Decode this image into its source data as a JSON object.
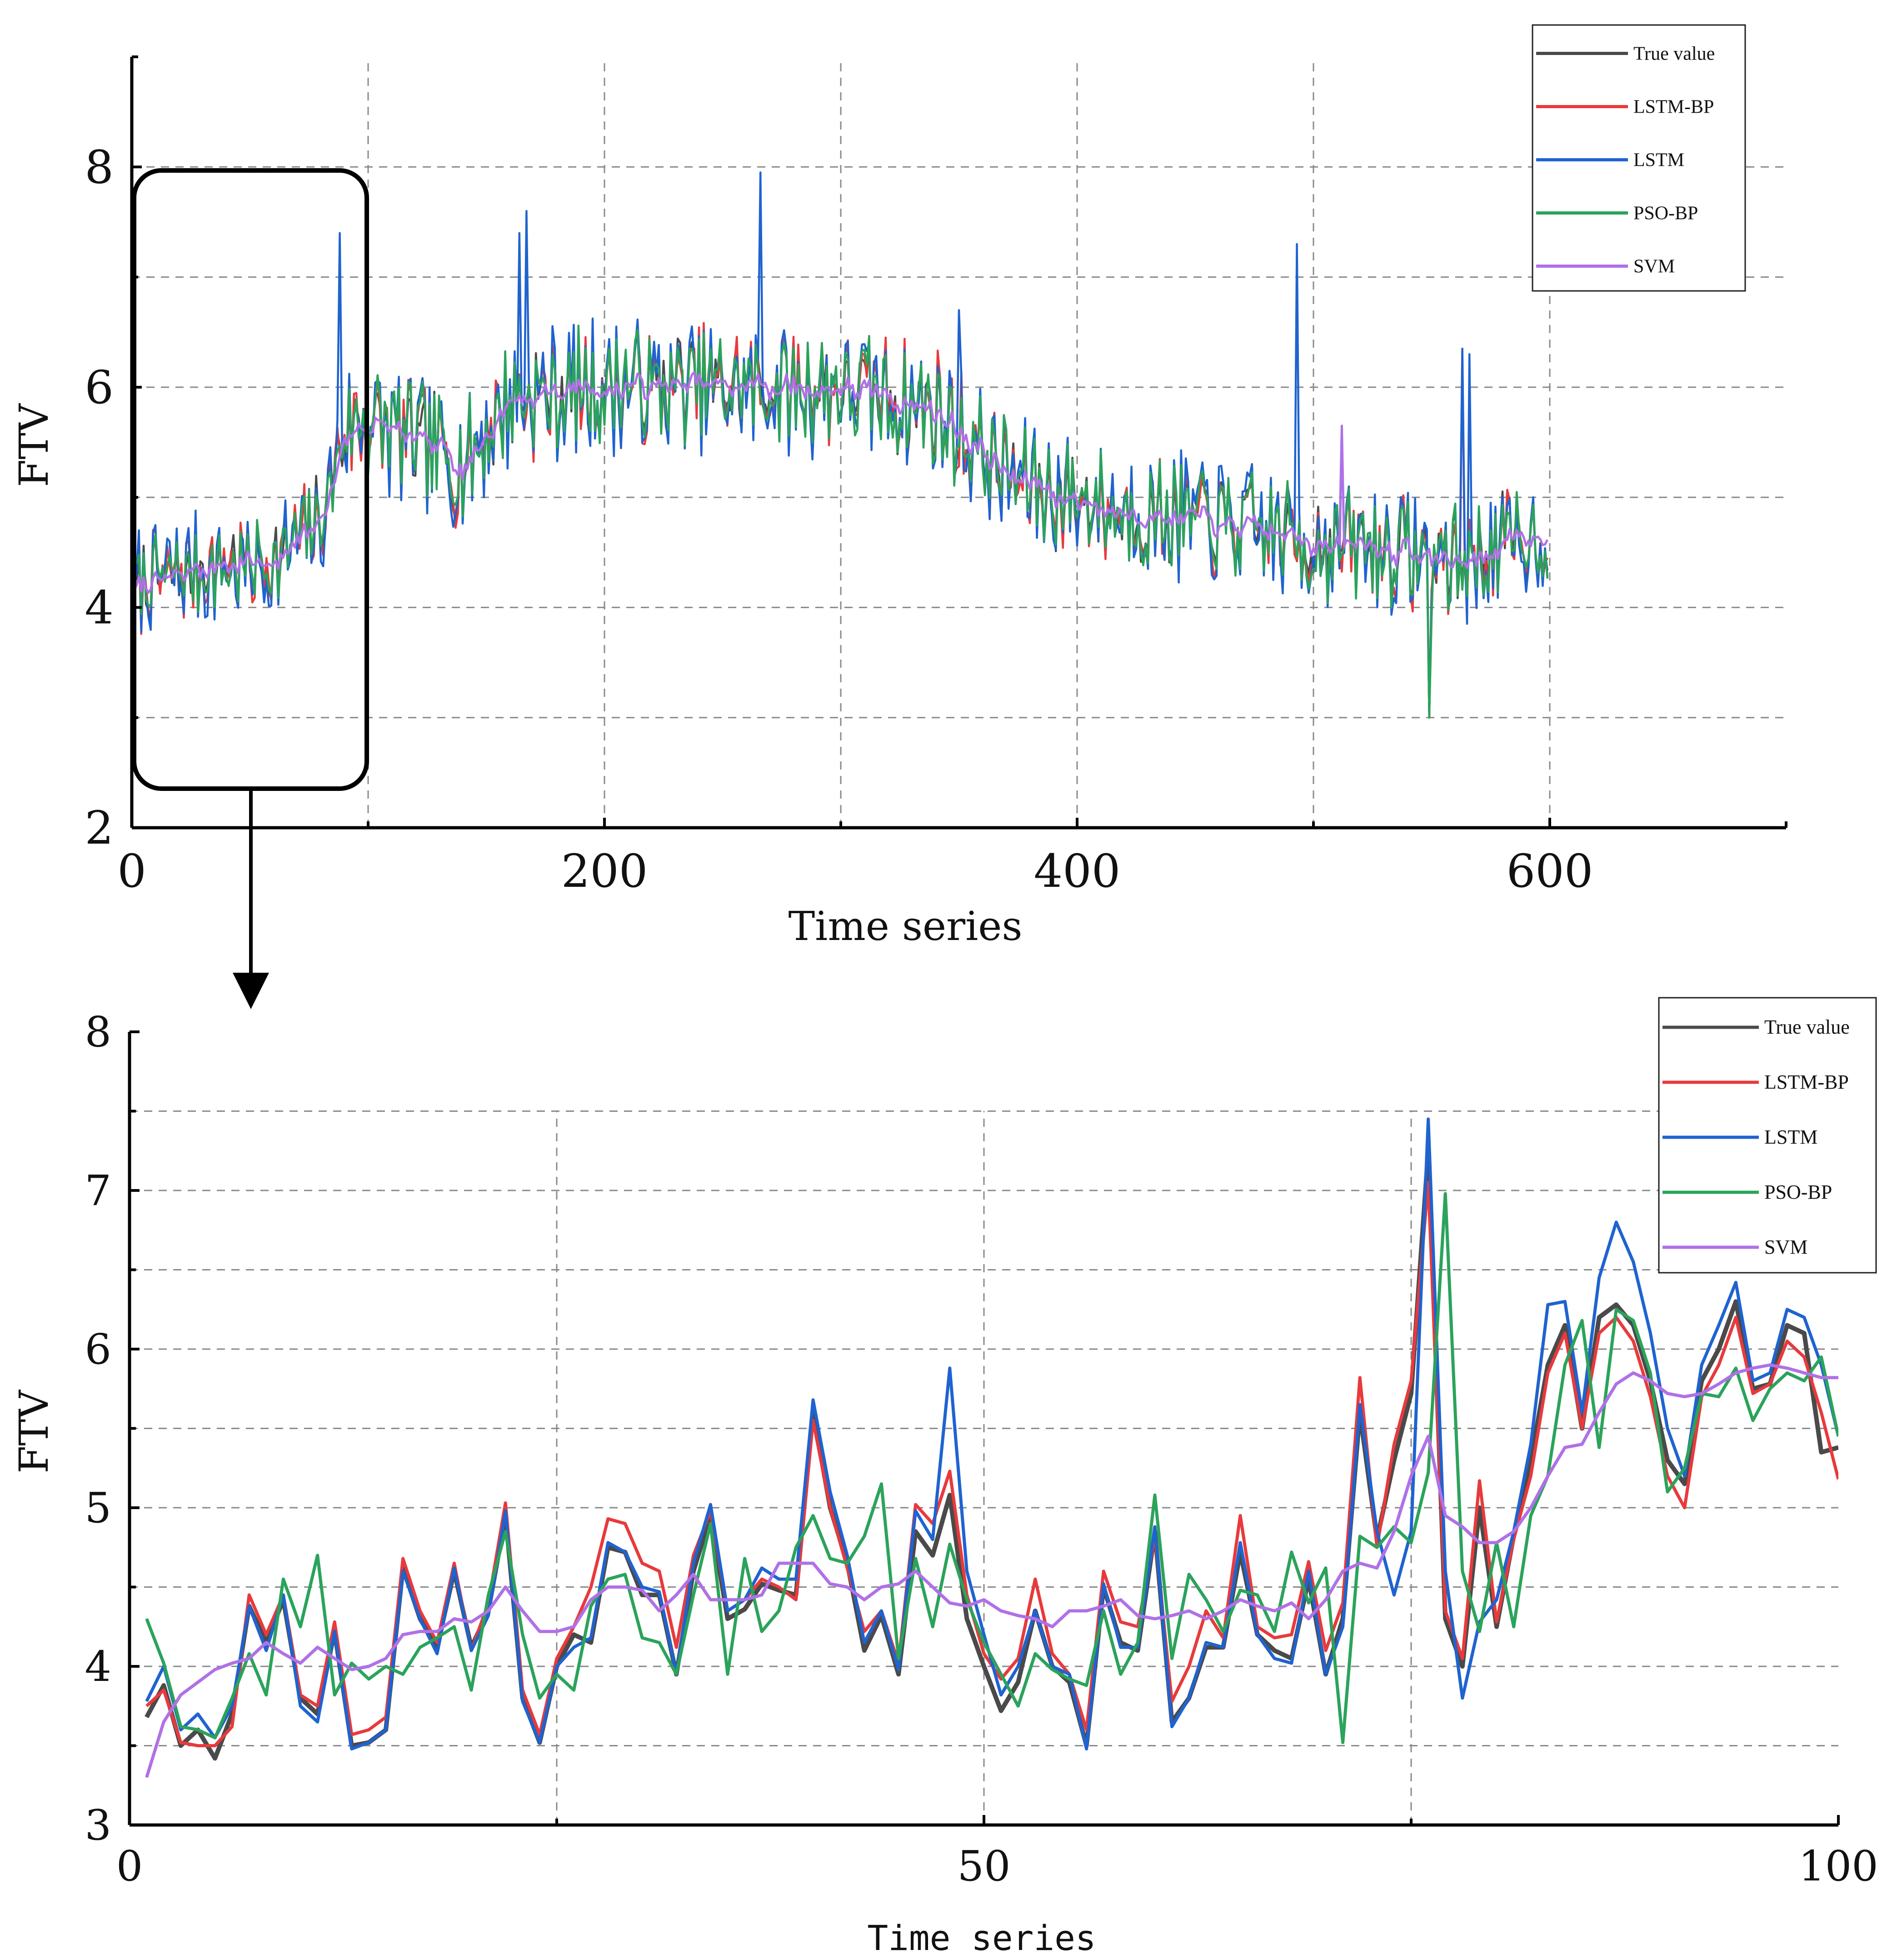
{
  "chart_data": [
    {
      "type": "line",
      "id": "overview",
      "xlabel": "Time series",
      "ylabel": "FTV",
      "xlim": [
        0,
        700
      ],
      "ylim": [
        2,
        9
      ],
      "xticks": [
        "0",
        "200",
        "400",
        "600"
      ],
      "xtick_values": [
        0,
        200,
        400,
        600
      ],
      "yticks": [
        "2",
        "4",
        "6",
        "8"
      ],
      "ytick_values": [
        2,
        4,
        6,
        8
      ],
      "grid_x": [
        100,
        200,
        300,
        400,
        500,
        600
      ],
      "grid_y": [
        3,
        4,
        5,
        6,
        7,
        8
      ],
      "legend": [
        "True value",
        "LSTM-BP",
        "LSTM",
        "PSO-BP",
        "SVM"
      ],
      "legend_position": "top-right",
      "n_points": 600,
      "trend_knots_x": [
        0,
        40,
        60,
        80,
        90,
        100,
        140,
        160,
        200,
        250,
        300,
        340,
        370,
        400,
        450,
        500,
        540,
        560,
        600
      ],
      "trend_knots_y": [
        4.2,
        4.4,
        4.4,
        4.8,
        5.6,
        5.7,
        5.3,
        5.9,
        6.0,
        6.0,
        6.0,
        5.8,
        5.2,
        4.95,
        4.8,
        4.6,
        4.5,
        4.4,
        4.7
      ],
      "series": [
        {
          "name": "True value",
          "color": "#4a4a4a",
          "seed": 11,
          "amp": 1.0
        },
        {
          "name": "LSTM-BP",
          "color": "#e8393d",
          "seed": 22,
          "amp": 1.1
        },
        {
          "name": "LSTM",
          "color": "#1f63d0",
          "seed": 33,
          "amp": 1.3
        },
        {
          "name": "PSO-BP",
          "color": "#2ba35a",
          "seed": 44,
          "amp": 1.05
        },
        {
          "name": "SVM",
          "color": "#b070e6",
          "seed": 55,
          "amp": 0.15
        }
      ],
      "spikes": [
        [
          88,
          7.4
        ],
        [
          164,
          7.4
        ],
        [
          167,
          7.6
        ],
        [
          266,
          7.95
        ],
        [
          350,
          6.7
        ],
        [
          493,
          7.3
        ],
        [
          512,
          5.65
        ],
        [
          563,
          6.35
        ],
        [
          566,
          6.3
        ],
        [
          549,
          3.0
        ]
      ]
    },
    {
      "type": "line",
      "id": "zoom",
      "xlabel": "Time series",
      "ylabel": "FTV",
      "xlim": [
        0,
        100
      ],
      "ylim": [
        3,
        8
      ],
      "xticks": [
        "0",
        "50",
        "100"
      ],
      "xtick_values": [
        0,
        50,
        100
      ],
      "yticks": [
        "3",
        "4",
        "5",
        "6",
        "7",
        "8"
      ],
      "ytick_values": [
        3,
        4,
        5,
        6,
        7,
        8
      ],
      "grid_x": [
        25,
        50,
        75
      ],
      "grid_y": [
        3.5,
        4,
        4.5,
        5,
        5.5,
        6,
        6.5,
        7,
        7.5
      ],
      "legend": [
        "True value",
        "LSTM-BP",
        "LSTM",
        "PSO-BP",
        "SVM"
      ],
      "legend_position": "top-right",
      "x": [
        1,
        2,
        3,
        4,
        5,
        6,
        7,
        8,
        9,
        10,
        11,
        12,
        13,
        14,
        15,
        16,
        17,
        18,
        19,
        20,
        21,
        22,
        23,
        24,
        25,
        26,
        27,
        28,
        29,
        30,
        31,
        32,
        33,
        34,
        35,
        36,
        37,
        38,
        39,
        40,
        41,
        42,
        43,
        44,
        45,
        46,
        47,
        48,
        49,
        50,
        51,
        52,
        53,
        54,
        55,
        56,
        57,
        58,
        59,
        60,
        61,
        62,
        63,
        64,
        65,
        66,
        67,
        68,
        69,
        70,
        71,
        72,
        73,
        74,
        75,
        76,
        77,
        78,
        79,
        80,
        81,
        82,
        83,
        84,
        85,
        86,
        87,
        88,
        89,
        90,
        91,
        92,
        93,
        94,
        95,
        96,
        97,
        98,
        99,
        100
      ],
      "series": [
        {
          "name": "True value",
          "color": "#4a4a4a",
          "values": [
            3.68,
            3.88,
            3.5,
            3.6,
            3.42,
            3.7,
            4.38,
            4.15,
            4.42,
            3.8,
            3.7,
            4.22,
            3.5,
            3.52,
            3.6,
            4.62,
            4.3,
            4.12,
            4.6,
            4.12,
            4.35,
            4.95,
            3.8,
            3.52,
            4.0,
            4.2,
            4.15,
            4.75,
            4.72,
            4.45,
            4.45,
            3.95,
            4.6,
            4.95,
            4.3,
            4.36,
            4.52,
            4.48,
            4.45,
            5.6,
            5.0,
            4.65,
            4.1,
            4.32,
            3.95,
            4.85,
            4.7,
            5.08,
            4.3,
            4.0,
            3.72,
            3.9,
            4.35,
            4.0,
            3.9,
            3.5,
            4.5,
            4.15,
            4.1,
            4.85,
            3.65,
            3.8,
            4.12,
            4.12,
            4.72,
            4.2,
            4.1,
            4.05,
            4.55,
            3.95,
            4.3,
            5.6,
            4.8,
            5.3,
            5.72,
            7.25,
            4.3,
            4.0,
            5.0,
            4.25,
            4.82,
            5.3,
            5.9,
            6.15,
            5.5,
            6.2,
            6.28,
            6.15,
            5.8,
            5.3,
            5.15,
            5.8,
            6.0,
            6.3,
            5.75,
            5.78,
            6.15,
            6.1,
            5.35,
            5.38
          ]
        },
        {
          "name": "LSTM-BP",
          "color": "#e8393d",
          "values": [
            3.75,
            3.85,
            3.52,
            3.5,
            3.5,
            3.62,
            4.45,
            4.2,
            4.45,
            3.82,
            3.75,
            4.28,
            3.57,
            3.6,
            3.68,
            4.68,
            4.35,
            4.15,
            4.65,
            4.1,
            4.4,
            5.03,
            3.85,
            3.57,
            4.05,
            4.25,
            4.5,
            4.93,
            4.9,
            4.65,
            4.6,
            4.12,
            4.7,
            4.98,
            4.35,
            4.42,
            4.55,
            4.5,
            4.42,
            5.55,
            5.0,
            4.62,
            4.22,
            4.35,
            4.02,
            5.02,
            4.9,
            5.23,
            4.45,
            4.08,
            3.92,
            4.05,
            4.55,
            4.08,
            3.95,
            3.6,
            4.6,
            4.28,
            4.25,
            4.82,
            3.78,
            4.0,
            4.35,
            4.18,
            4.95,
            4.25,
            4.18,
            4.2,
            4.66,
            4.1,
            4.4,
            5.82,
            4.75,
            5.4,
            5.8,
            7.05,
            4.35,
            4.05,
            5.17,
            4.28,
            4.8,
            5.2,
            5.85,
            6.1,
            5.5,
            6.1,
            6.2,
            6.05,
            5.7,
            5.2,
            5.0,
            5.7,
            5.9,
            6.2,
            5.72,
            5.78,
            6.05,
            5.95,
            5.6,
            5.18
          ]
        },
        {
          "name": "LSTM",
          "color": "#1f63d0",
          "values": [
            3.78,
            4.0,
            3.6,
            3.7,
            3.55,
            3.75,
            4.38,
            4.1,
            4.45,
            3.75,
            3.65,
            4.22,
            3.48,
            3.52,
            3.6,
            4.6,
            4.3,
            4.08,
            4.62,
            4.1,
            4.32,
            4.98,
            3.78,
            3.52,
            4.0,
            4.12,
            4.18,
            4.78,
            4.72,
            4.5,
            4.47,
            3.95,
            4.65,
            5.02,
            4.35,
            4.42,
            4.62,
            4.55,
            4.55,
            5.68,
            5.1,
            4.7,
            4.15,
            4.35,
            3.98,
            4.98,
            4.8,
            5.88,
            4.6,
            4.2,
            3.82,
            4.0,
            4.35,
            4.0,
            3.95,
            3.48,
            4.52,
            4.12,
            4.12,
            4.88,
            3.62,
            3.8,
            4.15,
            4.12,
            4.78,
            4.2,
            4.05,
            4.02,
            4.6,
            3.95,
            4.25,
            5.65,
            4.85,
            4.45,
            4.85,
            7.45,
            4.6,
            3.8,
            4.28,
            4.42,
            4.85,
            5.4,
            6.28,
            6.3,
            5.6,
            6.45,
            6.8,
            6.55,
            6.1,
            5.5,
            5.2,
            5.9,
            6.15,
            6.42,
            5.8,
            5.85,
            6.25,
            6.2,
            5.9,
            5.45
          ]
        },
        {
          "name": "PSO-BP",
          "color": "#2ba35a",
          "values": [
            4.3,
            4.02,
            3.62,
            3.6,
            3.55,
            3.8,
            4.08,
            3.82,
            4.55,
            4.25,
            4.7,
            3.82,
            4.02,
            3.92,
            4.0,
            3.95,
            4.12,
            4.18,
            4.25,
            3.85,
            4.45,
            4.85,
            4.2,
            3.8,
            3.95,
            3.85,
            4.38,
            4.55,
            4.58,
            4.18,
            4.15,
            3.95,
            4.45,
            4.9,
            3.95,
            4.68,
            4.22,
            4.35,
            4.75,
            4.95,
            4.68,
            4.65,
            4.82,
            5.15,
            4.05,
            4.68,
            4.25,
            4.77,
            4.42,
            4.15,
            3.95,
            3.75,
            4.08,
            3.98,
            3.92,
            3.88,
            4.35,
            3.95,
            4.15,
            5.08,
            4.05,
            4.58,
            4.42,
            4.22,
            4.48,
            4.45,
            4.22,
            4.72,
            4.4,
            4.62,
            3.52,
            4.82,
            4.75,
            4.88,
            4.78,
            5.22,
            6.98,
            4.6,
            4.22,
            4.78,
            4.25,
            4.95,
            5.2,
            5.9,
            6.18,
            5.38,
            6.25,
            6.18,
            5.85,
            5.1,
            5.25,
            5.72,
            5.7,
            5.88,
            5.55,
            5.75,
            5.85,
            5.8,
            5.95,
            5.45
          ]
        },
        {
          "name": "SVM",
          "color": "#b070e6",
          "values": [
            3.3,
            3.65,
            3.82,
            3.9,
            3.98,
            4.02,
            4.05,
            4.15,
            4.08,
            4.02,
            4.12,
            4.05,
            3.98,
            4.0,
            4.05,
            4.2,
            4.22,
            4.22,
            4.3,
            4.28,
            4.35,
            4.5,
            4.35,
            4.22,
            4.22,
            4.25,
            4.42,
            4.5,
            4.5,
            4.48,
            4.35,
            4.45,
            4.58,
            4.42,
            4.42,
            4.42,
            4.45,
            4.65,
            4.65,
            4.65,
            4.52,
            4.5,
            4.42,
            4.5,
            4.52,
            4.6,
            4.5,
            4.4,
            4.38,
            4.42,
            4.35,
            4.32,
            4.3,
            4.25,
            4.35,
            4.35,
            4.38,
            4.42,
            4.32,
            4.3,
            4.32,
            4.35,
            4.3,
            4.35,
            4.42,
            4.38,
            4.35,
            4.4,
            4.3,
            4.42,
            4.6,
            4.65,
            4.62,
            4.85,
            5.2,
            5.45,
            4.95,
            4.88,
            4.78,
            4.78,
            4.85,
            5.0,
            5.2,
            5.38,
            5.4,
            5.6,
            5.78,
            5.85,
            5.8,
            5.72,
            5.7,
            5.72,
            5.78,
            5.85,
            5.88,
            5.9,
            5.88,
            5.85,
            5.82,
            5.82
          ]
        }
      ]
    }
  ]
}
